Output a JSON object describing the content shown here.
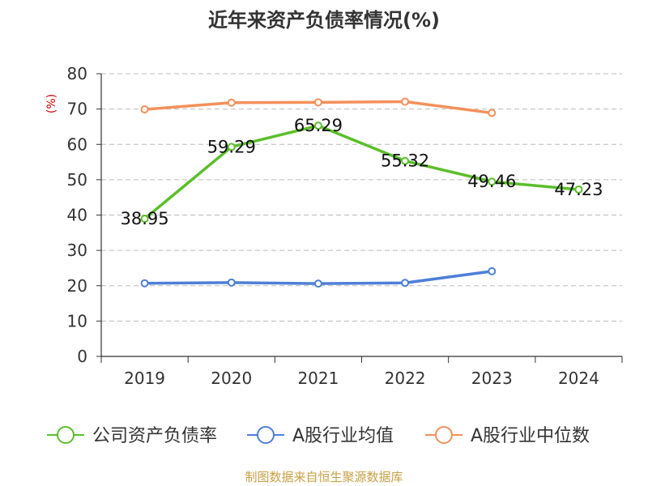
{
  "chart_data": {
    "type": "line",
    "title": "近年来资产负债率情况(%)",
    "ylabel": "(%)",
    "xlabel": "",
    "categories": [
      "2019",
      "2020",
      "2021",
      "2022",
      "2023",
      "2024"
    ],
    "ylim": [
      0,
      80
    ],
    "yticks": [
      0,
      10,
      20,
      30,
      40,
      50,
      60,
      70,
      80
    ],
    "grid": true,
    "legend_position": "bottom",
    "series": [
      {
        "name": "公司资产负债率",
        "color": "#5bbf2a",
        "values": [
          38.95,
          59.29,
          65.29,
          55.32,
          49.46,
          47.23
        ],
        "labels": [
          "38.95",
          "59.29",
          "65.29",
          "55.32",
          "49.46",
          "47.23"
        ]
      },
      {
        "name": "A股行业均值",
        "color": "#4d7fd8",
        "values": [
          20.7,
          20.9,
          20.6,
          20.8,
          24.1,
          null
        ]
      },
      {
        "name": "A股行业中位数",
        "color": "#f4905a",
        "values": [
          69.9,
          71.8,
          71.9,
          72.1,
          68.9,
          null
        ]
      }
    ],
    "source": "制图数据来自恒生聚源数据库",
    "colors": {
      "title": "#333333",
      "ylabel": "#cc0000",
      "axis": "#333333",
      "grid": "#bbbbbb",
      "source": "#c8a046"
    }
  }
}
